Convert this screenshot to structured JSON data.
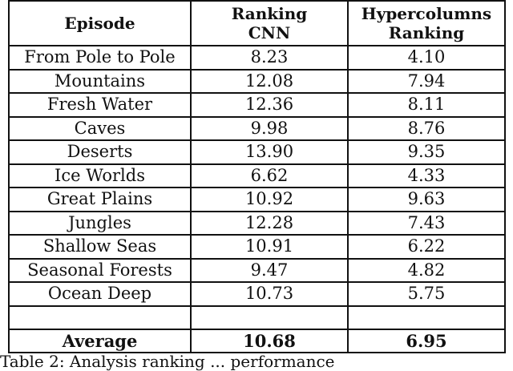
{
  "table": {
    "headers": [
      "Episode",
      "Ranking CNN",
      "Hypercolumns Ranking"
    ],
    "header_lines": {
      "col1": [
        "Episode"
      ],
      "col2": [
        "Ranking",
        "CNN"
      ],
      "col3": [
        "Hypercolumns",
        "Ranking"
      ]
    },
    "rows": [
      {
        "episode": "From Pole to Pole",
        "ranking_cnn": "8.23",
        "hypercolumns": "4.10"
      },
      {
        "episode": "Mountains",
        "ranking_cnn": "12.08",
        "hypercolumns": "7.94"
      },
      {
        "episode": "Fresh Water",
        "ranking_cnn": "12.36",
        "hypercolumns": "8.11"
      },
      {
        "episode": "Caves",
        "ranking_cnn": "9.98",
        "hypercolumns": "8.76"
      },
      {
        "episode": "Deserts",
        "ranking_cnn": "13.90",
        "hypercolumns": "9.35"
      },
      {
        "episode": "Ice Worlds",
        "ranking_cnn": "6.62",
        "hypercolumns": "4.33"
      },
      {
        "episode": "Great Plains",
        "ranking_cnn": "10.92",
        "hypercolumns": "9.63"
      },
      {
        "episode": "Jungles",
        "ranking_cnn": "12.28",
        "hypercolumns": "7.43"
      },
      {
        "episode": "Shallow Seas",
        "ranking_cnn": "10.91",
        "hypercolumns": "6.22"
      },
      {
        "episode": "Seasonal Forests",
        "ranking_cnn": "9.47",
        "hypercolumns": "4.82"
      },
      {
        "episode": "Ocean Deep",
        "ranking_cnn": "10.73",
        "hypercolumns": "5.75"
      }
    ],
    "footer": {
      "label": "Average",
      "ranking_cnn": "10.68",
      "hypercolumns": "6.95"
    }
  },
  "caption": {
    "text": "Table 2: Analysis ranking ... performance"
  }
}
